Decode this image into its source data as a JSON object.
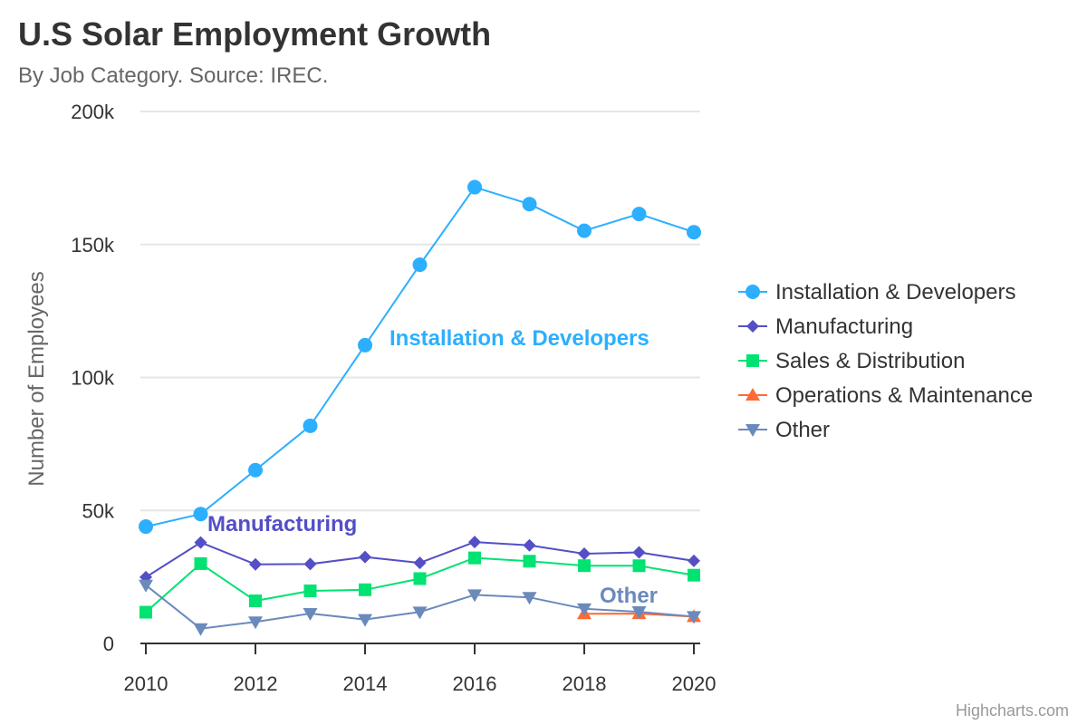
{
  "chart_data": {
    "type": "line",
    "title": "U.S Solar Employment Growth",
    "subtitle": "By Job Category. Source: IREC.",
    "xlabel": "",
    "ylabel": "Number of Employees",
    "xlim": [
      2010,
      2020
    ],
    "ylim": [
      0,
      200000
    ],
    "x_ticks": [
      "2010",
      "2012",
      "2014",
      "2016",
      "2018",
      "2020"
    ],
    "x_tick_values": [
      2010,
      2012,
      2014,
      2016,
      2018,
      2020
    ],
    "y_ticks": [
      "0",
      "50k",
      "100k",
      "150k",
      "200k"
    ],
    "y_tick_values": [
      0,
      50000,
      100000,
      150000,
      200000
    ],
    "grid": true,
    "legend_position": "right",
    "series": [
      {
        "name": "Installation & Developers",
        "color": "#2caffe",
        "marker": "circle",
        "x": [
          2010,
          2011,
          2012,
          2013,
          2014,
          2015,
          2016,
          2017,
          2018,
          2019,
          2020
        ],
        "values": [
          43934,
          48656,
          65165,
          81827,
          112143,
          142383,
          171533,
          165174,
          155157,
          161454,
          154610
        ]
      },
      {
        "name": "Manufacturing",
        "color": "#544fc5",
        "marker": "diamond",
        "x": [
          2010,
          2011,
          2012,
          2013,
          2014,
          2015,
          2016,
          2017,
          2018,
          2019,
          2020
        ],
        "values": [
          24916,
          37941,
          29742,
          29851,
          32490,
          30282,
          38121,
          36885,
          33726,
          34243,
          31050
        ]
      },
      {
        "name": "Sales & Distribution",
        "color": "#00e272",
        "marker": "square",
        "x": [
          2010,
          2011,
          2012,
          2013,
          2014,
          2015,
          2016,
          2017,
          2018,
          2019,
          2020
        ],
        "values": [
          11744,
          30000,
          16005,
          19771,
          20185,
          24377,
          32147,
          30912,
          29243,
          29213,
          25663
        ]
      },
      {
        "name": "Operations & Maintenance",
        "color": "#fe6a35",
        "marker": "triangle",
        "x": [
          2018,
          2019,
          2020
        ],
        "values": [
          11164,
          11218,
          10077
        ]
      },
      {
        "name": "Other",
        "color": "#6b8abc",
        "marker": "triangle-down",
        "x": [
          2010,
          2011,
          2012,
          2013,
          2014,
          2015,
          2016,
          2017,
          2018,
          2019,
          2020
        ],
        "values": [
          21908,
          5548,
          8105,
          11248,
          8989,
          11816,
          18274,
          17300,
          13053,
          11906,
          10073
        ]
      }
    ],
    "series_labels": [
      {
        "text": "Installation & Developers",
        "series": 0
      },
      {
        "text": "Manufacturing",
        "series": 1
      },
      {
        "text": "Other",
        "series": 4
      }
    ],
    "credits": "Highcharts.com"
  }
}
